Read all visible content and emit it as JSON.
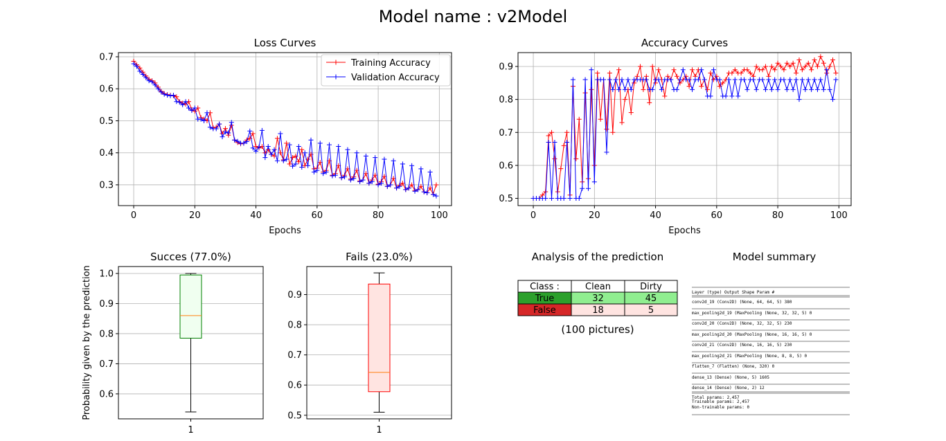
{
  "suptitle": "Model name : v2Model",
  "chart_data": [
    {
      "type": "line",
      "title": "Loss Curves",
      "xlabel": "Epochs",
      "ylabel": "",
      "xlim": [
        -5,
        104
      ],
      "ylim": [
        0.235,
        0.713
      ],
      "xticks": [
        0,
        20,
        40,
        60,
        80,
        100
      ],
      "yticks": [
        0.3,
        0.4,
        0.5,
        0.6,
        0.7
      ],
      "grid": true,
      "legend": "top-right",
      "series": [
        {
          "name": "Training Accuracy",
          "color": "#ff0000",
          "x": [
            0,
            1,
            2,
            3,
            4,
            5,
            6,
            7,
            8,
            9,
            10,
            11,
            12,
            13,
            14,
            15,
            16,
            17,
            18,
            19,
            20,
            21,
            22,
            23,
            24,
            25,
            26,
            27,
            28,
            29,
            30,
            31,
            32,
            33,
            34,
            35,
            36,
            37,
            38,
            39,
            40,
            41,
            42,
            43,
            44,
            45,
            46,
            47,
            48,
            49,
            50,
            51,
            52,
            53,
            54,
            55,
            56,
            57,
            58,
            59,
            60,
            61,
            62,
            63,
            64,
            65,
            66,
            67,
            68,
            69,
            70,
            71,
            72,
            73,
            74,
            75,
            76,
            77,
            78,
            79,
            80,
            81,
            82,
            83,
            84,
            85,
            86,
            87,
            88,
            89,
            90,
            91,
            92,
            93,
            94,
            95,
            96,
            97,
            98,
            99
          ],
          "values": [
            0.686,
            0.675,
            0.665,
            0.652,
            0.64,
            0.63,
            0.625,
            0.618,
            0.605,
            0.592,
            0.585,
            0.582,
            0.58,
            0.578,
            0.575,
            0.56,
            0.555,
            0.552,
            0.56,
            0.535,
            0.53,
            0.54,
            0.51,
            0.505,
            0.5,
            0.525,
            0.478,
            0.48,
            0.49,
            0.46,
            0.476,
            0.455,
            0.486,
            0.44,
            0.432,
            0.428,
            0.43,
            0.44,
            0.445,
            0.46,
            0.42,
            0.415,
            0.42,
            0.4,
            0.41,
            0.395,
            0.39,
            0.445,
            0.4,
            0.378,
            0.43,
            0.365,
            0.385,
            0.39,
            0.372,
            0.41,
            0.36,
            0.38,
            0.395,
            0.35,
            0.352,
            0.37,
            0.34,
            0.345,
            0.375,
            0.33,
            0.335,
            0.36,
            0.322,
            0.33,
            0.35,
            0.318,
            0.325,
            0.345,
            0.312,
            0.315,
            0.335,
            0.305,
            0.315,
            0.33,
            0.302,
            0.31,
            0.326,
            0.295,
            0.3,
            0.32,
            0.29,
            0.298,
            0.305,
            0.285,
            0.29,
            0.3,
            0.282,
            0.285,
            0.295,
            0.278,
            0.275,
            0.29,
            0.27,
            0.3
          ]
        },
        {
          "name": "Validation Accuracy",
          "color": "#0000ff",
          "x": [
            0,
            1,
            2,
            3,
            4,
            5,
            6,
            7,
            8,
            9,
            10,
            11,
            12,
            13,
            14,
            15,
            16,
            17,
            18,
            19,
            20,
            21,
            22,
            23,
            24,
            25,
            26,
            27,
            28,
            29,
            30,
            31,
            32,
            33,
            34,
            35,
            36,
            37,
            38,
            39,
            40,
            41,
            42,
            43,
            44,
            45,
            46,
            47,
            48,
            49,
            50,
            51,
            52,
            53,
            54,
            55,
            56,
            57,
            58,
            59,
            60,
            61,
            62,
            63,
            64,
            65,
            66,
            67,
            68,
            69,
            70,
            71,
            72,
            73,
            74,
            75,
            76,
            77,
            78,
            79,
            80,
            81,
            82,
            83,
            84,
            85,
            86,
            87,
            88,
            89,
            90,
            91,
            92,
            93,
            94,
            95,
            96,
            97,
            98,
            99
          ],
          "values": [
            0.678,
            0.67,
            0.655,
            0.645,
            0.635,
            0.625,
            0.622,
            0.612,
            0.6,
            0.59,
            0.583,
            0.58,
            0.578,
            0.58,
            0.56,
            0.558,
            0.55,
            0.56,
            0.54,
            0.532,
            0.54,
            0.505,
            0.505,
            0.5,
            0.525,
            0.48,
            0.475,
            0.475,
            0.49,
            0.45,
            0.465,
            0.462,
            0.495,
            0.44,
            0.436,
            0.43,
            0.43,
            0.435,
            0.468,
            0.415,
            0.405,
            0.418,
            0.47,
            0.385,
            0.42,
            0.395,
            0.41,
            0.375,
            0.46,
            0.375,
            0.38,
            0.425,
            0.358,
            0.365,
            0.42,
            0.355,
            0.4,
            0.36,
            0.44,
            0.34,
            0.345,
            0.43,
            0.335,
            0.34,
            0.425,
            0.328,
            0.33,
            0.42,
            0.322,
            0.325,
            0.41,
            0.315,
            0.32,
            0.4,
            0.31,
            0.315,
            0.39,
            0.305,
            0.31,
            0.385,
            0.3,
            0.305,
            0.38,
            0.295,
            0.3,
            0.375,
            0.29,
            0.295,
            0.365,
            0.285,
            0.29,
            0.36,
            0.28,
            0.285,
            0.35,
            0.278,
            0.275,
            0.34,
            0.27,
            0.265
          ]
        }
      ]
    },
    {
      "type": "line",
      "title": "Accuracy Curves",
      "xlabel": "Epochs",
      "ylabel": "",
      "xlim": [
        -5,
        104
      ],
      "ylim": [
        0.478,
        0.942
      ],
      "xticks": [
        0,
        20,
        40,
        60,
        80,
        100
      ],
      "yticks": [
        0.5,
        0.6,
        0.7,
        0.8,
        0.9
      ],
      "grid": true,
      "series": [
        {
          "color": "#ff0000",
          "x": [
            0,
            1,
            2,
            3,
            4,
            5,
            6,
            7,
            8,
            9,
            10,
            11,
            12,
            13,
            14,
            15,
            16,
            17,
            18,
            19,
            20,
            21,
            22,
            23,
            24,
            25,
            26,
            27,
            28,
            29,
            30,
            31,
            32,
            33,
            34,
            35,
            36,
            37,
            38,
            39,
            40,
            41,
            42,
            43,
            44,
            45,
            46,
            47,
            48,
            49,
            50,
            51,
            52,
            53,
            54,
            55,
            56,
            57,
            58,
            59,
            60,
            61,
            62,
            63,
            64,
            65,
            66,
            67,
            68,
            69,
            70,
            71,
            72,
            73,
            74,
            75,
            76,
            77,
            78,
            79,
            80,
            81,
            82,
            83,
            84,
            85,
            86,
            87,
            88,
            89,
            90,
            91,
            92,
            93,
            94,
            95,
            96,
            97,
            98,
            99
          ],
          "values": [
            0.5,
            0.5,
            0.5,
            0.51,
            0.52,
            0.69,
            0.7,
            0.62,
            0.52,
            0.59,
            0.66,
            0.7,
            0.51,
            0.84,
            0.62,
            0.74,
            0.55,
            0.82,
            0.56,
            0.83,
            0.6,
            0.88,
            0.74,
            0.86,
            0.71,
            0.88,
            0.7,
            0.86,
            0.89,
            0.73,
            0.8,
            0.83,
            0.76,
            0.85,
            0.87,
            0.9,
            0.83,
            0.87,
            0.79,
            0.9,
            0.85,
            0.89,
            0.86,
            0.81,
            0.87,
            0.86,
            0.89,
            0.87,
            0.85,
            0.86,
            0.87,
            0.84,
            0.89,
            0.87,
            0.89,
            0.84,
            0.86,
            0.83,
            0.88,
            0.86,
            0.87,
            0.84,
            0.85,
            0.86,
            0.88,
            0.88,
            0.89,
            0.88,
            0.88,
            0.89,
            0.89,
            0.88,
            0.87,
            0.9,
            0.89,
            0.89,
            0.9,
            0.87,
            0.9,
            0.89,
            0.91,
            0.9,
            0.89,
            0.91,
            0.9,
            0.91,
            0.88,
            0.92,
            0.89,
            0.9,
            0.91,
            0.89,
            0.92,
            0.9,
            0.93,
            0.91,
            0.88,
            0.9,
            0.92,
            0.88
          ]
        },
        {
          "color": "#0000ff",
          "x": [
            0,
            1,
            2,
            3,
            4,
            5,
            6,
            7,
            8,
            9,
            10,
            11,
            12,
            13,
            14,
            15,
            16,
            17,
            18,
            19,
            20,
            21,
            22,
            23,
            24,
            25,
            26,
            27,
            28,
            29,
            30,
            31,
            32,
            33,
            34,
            35,
            36,
            37,
            38,
            39,
            40,
            41,
            42,
            43,
            44,
            45,
            46,
            47,
            48,
            49,
            50,
            51,
            52,
            53,
            54,
            55,
            56,
            57,
            58,
            59,
            60,
            61,
            62,
            63,
            64,
            65,
            66,
            67,
            68,
            69,
            70,
            71,
            72,
            73,
            74,
            75,
            76,
            77,
            78,
            79,
            80,
            81,
            82,
            83,
            84,
            85,
            86,
            87,
            88,
            89,
            90,
            91,
            92,
            93,
            94,
            95,
            96,
            97,
            98,
            99
          ],
          "values": [
            0.5,
            0.5,
            0.5,
            0.5,
            0.5,
            0.67,
            0.5,
            0.67,
            0.5,
            0.5,
            0.5,
            0.67,
            0.5,
            0.86,
            0.5,
            0.5,
            0.53,
            0.86,
            0.53,
            0.89,
            0.55,
            0.86,
            0.86,
            0.86,
            0.64,
            0.86,
            0.83,
            0.86,
            0.83,
            0.86,
            0.83,
            0.86,
            0.83,
            0.86,
            0.86,
            0.86,
            0.86,
            0.86,
            0.83,
            0.83,
            0.86,
            0.86,
            0.83,
            0.86,
            0.86,
            0.86,
            0.83,
            0.83,
            0.86,
            0.89,
            0.86,
            0.86,
            0.83,
            0.86,
            0.86,
            0.89,
            0.86,
            0.81,
            0.81,
            0.89,
            0.86,
            0.86,
            0.81,
            0.81,
            0.86,
            0.81,
            0.86,
            0.81,
            0.86,
            0.86,
            0.83,
            0.86,
            0.86,
            0.83,
            0.86,
            0.86,
            0.83,
            0.86,
            0.83,
            0.86,
            0.83,
            0.86,
            0.86,
            0.83,
            0.86,
            0.83,
            0.86,
            0.8,
            0.86,
            0.83,
            0.86,
            0.83,
            0.86,
            0.83,
            0.86,
            0.83,
            0.89,
            0.83,
            0.8,
            0.86
          ]
        }
      ]
    },
    {
      "type": "box",
      "title": "Succes (77.0%)",
      "ylabel": "Probability given by the prediction",
      "ylim": [
        0.517,
        1.023
      ],
      "yticks": [
        0.6,
        0.7,
        0.8,
        0.9,
        1.0
      ],
      "category": "1",
      "stats": {
        "whislo": 0.54,
        "q1": 0.785,
        "median": 0.86,
        "q3": 0.995,
        "whishi": 1.0
      },
      "facecolor": "#f0fff0",
      "edgecolor": "#008000",
      "grid": true
    },
    {
      "type": "box",
      "title": "Fails (23.0%)",
      "ylabel": "",
      "ylim": [
        0.488,
        0.993
      ],
      "yticks": [
        0.5,
        0.6,
        0.7,
        0.8,
        0.9
      ],
      "category": "1",
      "stats": {
        "whislo": 0.51,
        "q1": 0.578,
        "median": 0.642,
        "q3": 0.935,
        "whishi": 0.972
      },
      "facecolor": "#ffe4e1",
      "edgecolor": "#ff0000",
      "grid": true
    },
    {
      "type": "table",
      "title": "Analysis of the prediction",
      "columns": [
        "Class :",
        "Clean",
        "Dirty"
      ],
      "rows": [
        {
          "label": "True",
          "values": [
            "32",
            "45"
          ],
          "label_color": "#2ca02c",
          "cell_color": "#90ee90"
        },
        {
          "label": "False",
          "values": [
            "18",
            "5"
          ],
          "label_color": "#d62728",
          "cell_color": "#ffe4e1"
        }
      ],
      "caption": "(100 pictures)"
    }
  ],
  "summary": {
    "title": "Model summary",
    "lines": [
      "Layer (type)                 Output Shape              Param #",
      "conv2d_19 (Conv2D)           (None, 64, 64, 5)         380",
      "max_pooling2d_19 (MaxPooling (None, 32, 32, 5)         0",
      "conv2d_20 (Conv2D)           (None, 32, 32, 5)         230",
      "max_pooling2d_20 (MaxPooling (None, 16, 16, 5)         0",
      "conv2d_21 (Conv2D)           (None, 16, 16, 5)         230",
      "max_pooling2d_21 (MaxPooling (None, 8, 8, 5)           0",
      "flatten_7 (Flatten)          (None, 320)               0",
      "dense_13 (Dense)             (None, 5)                 1605",
      "dense_14 (Dense)             (None, 2)                 12",
      "Total params: 2,457",
      "Trainable params: 2,457",
      "Non-trainable params: 0"
    ]
  }
}
